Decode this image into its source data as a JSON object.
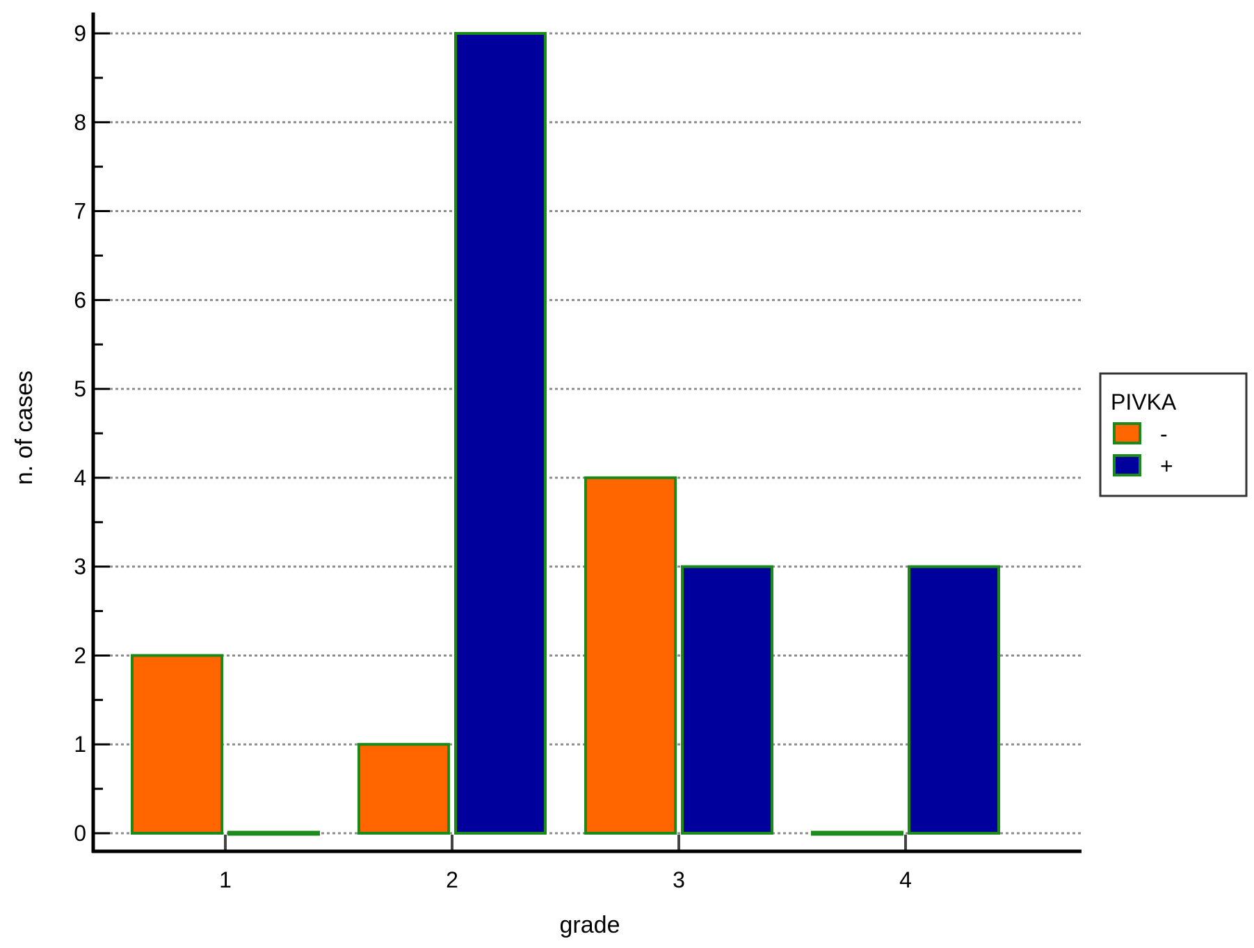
{
  "chart_data": {
    "type": "bar",
    "title": "",
    "xlabel": "grade",
    "ylabel": "n. of cases",
    "categories": [
      "1",
      "2",
      "3",
      "4"
    ],
    "series": [
      {
        "name": "-",
        "values": [
          2,
          1,
          4,
          0
        ],
        "color": "#ff6600"
      },
      {
        "name": "+",
        "values": [
          0,
          9,
          3,
          3
        ],
        "color": "#00009c"
      }
    ],
    "bar_outline_color": "#1a8a1a",
    "ylim": [
      0,
      9
    ],
    "yticks": [
      0,
      1,
      2,
      3,
      4,
      5,
      6,
      7,
      8,
      9
    ],
    "grid": true,
    "grid_style": "dotted",
    "legend": {
      "title": "PIVKA",
      "position": "right"
    }
  }
}
